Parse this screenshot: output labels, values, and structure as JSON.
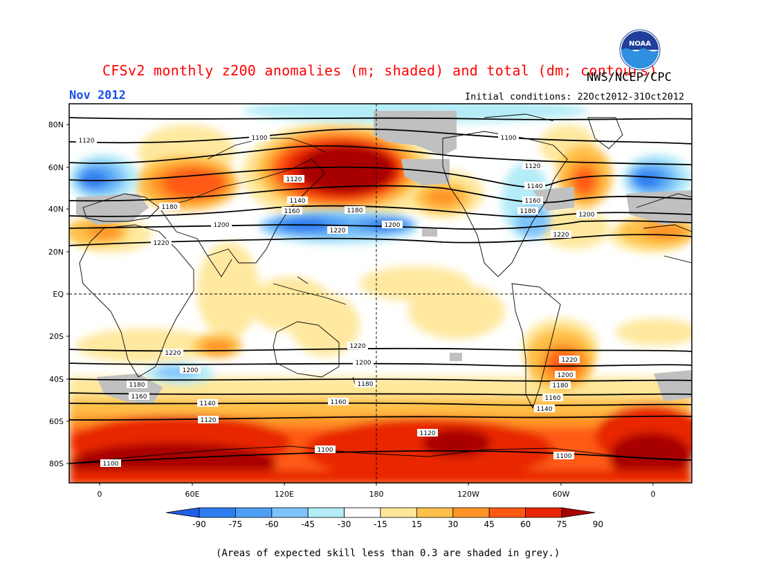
{
  "title": "CFSv2 monthly z200 anomalies (m; shaded) and total (dm; contours)",
  "agency": "NWS/NCEP/CPC",
  "month": "Nov 2012",
  "initial_conditions": "Initial conditions: 22Oct2012-31Oct2012",
  "footnote": "(Areas of expected skill less than 0.3 are shaded in grey.)",
  "logo_text": "NOAA",
  "logo_icon": "noaa-logo-icon",
  "lat_labels": [
    "80N",
    "60N",
    "40N",
    "20N",
    "EQ",
    "20S",
    "40S",
    "60S",
    "80S"
  ],
  "lon_labels": [
    "0",
    "60E",
    "120E",
    "180",
    "120W",
    "60W",
    "0"
  ],
  "colorbar": {
    "labels": [
      "-90",
      "-75",
      "-60",
      "-45",
      "-30",
      "-15",
      "15",
      "30",
      "45",
      "60",
      "75",
      "90"
    ],
    "colors": [
      "#1f5ee6",
      "#2d7df0",
      "#4fa0f5",
      "#7ec3fa",
      "#b4ecf7",
      "#ffffff",
      "#ffe79a",
      "#ffc04a",
      "#ff9426",
      "#ff5a12",
      "#e82505",
      "#a80000"
    ]
  },
  "grey_color": "#c0c0c0",
  "contour_labels": [
    "1100",
    "1120",
    "1140",
    "1160",
    "1180",
    "1200",
    "1220"
  ]
}
